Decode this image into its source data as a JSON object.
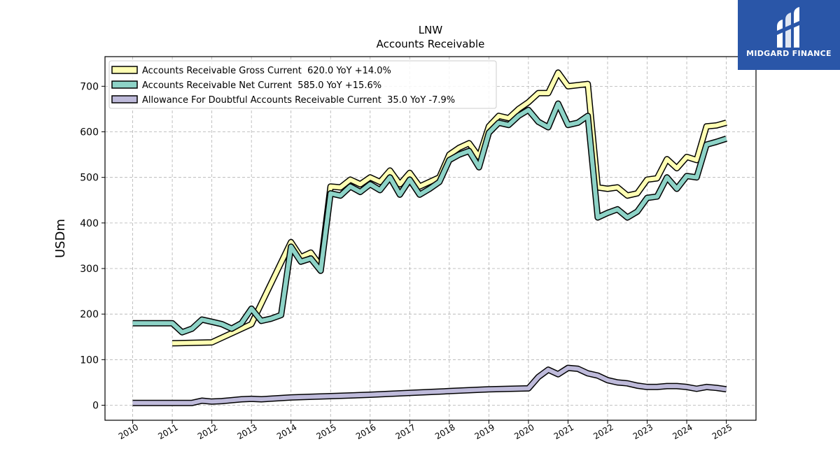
{
  "logo": {
    "text": "MIDGARD FINANCE"
  },
  "chart_data": {
    "type": "line",
    "title": "LNW",
    "subtitle": "Accounts Receivable",
    "ylabel": "USDm",
    "xlabel": "",
    "ylim": [
      -33,
      765
    ],
    "xlim": [
      2009.3,
      2025.75
    ],
    "yticks": [
      0,
      100,
      200,
      300,
      400,
      500,
      600,
      700
    ],
    "xticks": [
      2010,
      2011,
      2012,
      2013,
      2014,
      2015,
      2016,
      2017,
      2018,
      2019,
      2020,
      2021,
      2022,
      2023,
      2024,
      2025
    ],
    "grid": true,
    "legend_position": "top-left",
    "series": [
      {
        "name": "Accounts Receivable Gross Current  620.0 YoY +14.0%",
        "color": "#ffffb3",
        "points": [
          [
            2011.0,
            136
          ],
          [
            2012.0,
            138
          ],
          [
            2013.0,
            178
          ],
          [
            2014.0,
            358
          ],
          [
            2014.25,
            325
          ],
          [
            2014.5,
            335
          ],
          [
            2014.75,
            305
          ],
          [
            2015.0,
            480
          ],
          [
            2015.25,
            478
          ],
          [
            2015.5,
            495
          ],
          [
            2015.75,
            485
          ],
          [
            2016.0,
            500
          ],
          [
            2016.25,
            490
          ],
          [
            2016.5,
            515
          ],
          [
            2016.75,
            485
          ],
          [
            2017.0,
            510
          ],
          [
            2017.25,
            480
          ],
          [
            2017.5,
            490
          ],
          [
            2017.75,
            500
          ],
          [
            2018.0,
            550
          ],
          [
            2018.25,
            565
          ],
          [
            2018.5,
            575
          ],
          [
            2018.75,
            545
          ],
          [
            2019.0,
            612
          ],
          [
            2019.25,
            635
          ],
          [
            2019.5,
            630
          ],
          [
            2019.75,
            650
          ],
          [
            2020.0,
            665
          ],
          [
            2020.25,
            685
          ],
          [
            2020.5,
            685
          ],
          [
            2020.75,
            730
          ],
          [
            2021.0,
            700
          ],
          [
            2021.5,
            705
          ],
          [
            2021.75,
            478
          ],
          [
            2022.0,
            475
          ],
          [
            2022.25,
            478
          ],
          [
            2022.5,
            460
          ],
          [
            2022.75,
            465
          ],
          [
            2023.0,
            495
          ],
          [
            2023.25,
            498
          ],
          [
            2023.5,
            540
          ],
          [
            2023.75,
            520
          ],
          [
            2024.0,
            545
          ],
          [
            2024.25,
            538
          ],
          [
            2024.5,
            612
          ],
          [
            2024.75,
            614
          ],
          [
            2025.0,
            620
          ]
        ]
      },
      {
        "name": "Accounts Receivable Net Current  585.0 YoY +15.6%",
        "color": "#8dd3c7",
        "points": [
          [
            2010.0,
            180
          ],
          [
            2011.0,
            180
          ],
          [
            2011.25,
            160
          ],
          [
            2011.5,
            168
          ],
          [
            2011.75,
            188
          ],
          [
            2012.0,
            183
          ],
          [
            2012.25,
            178
          ],
          [
            2012.5,
            168
          ],
          [
            2012.75,
            180
          ],
          [
            2013.0,
            212
          ],
          [
            2013.25,
            185
          ],
          [
            2013.5,
            190
          ],
          [
            2013.75,
            198
          ],
          [
            2014.0,
            348
          ],
          [
            2014.25,
            315
          ],
          [
            2014.5,
            322
          ],
          [
            2014.75,
            295
          ],
          [
            2015.0,
            465
          ],
          [
            2015.25,
            460
          ],
          [
            2015.5,
            480
          ],
          [
            2015.75,
            468
          ],
          [
            2016.0,
            485
          ],
          [
            2016.25,
            472
          ],
          [
            2016.5,
            500
          ],
          [
            2016.75,
            462
          ],
          [
            2017.0,
            495
          ],
          [
            2017.25,
            462
          ],
          [
            2017.5,
            475
          ],
          [
            2017.75,
            490
          ],
          [
            2018.0,
            538
          ],
          [
            2018.25,
            550
          ],
          [
            2018.5,
            558
          ],
          [
            2018.75,
            522
          ],
          [
            2019.0,
            598
          ],
          [
            2019.25,
            620
          ],
          [
            2019.5,
            615
          ],
          [
            2019.75,
            635
          ],
          [
            2020.0,
            648
          ],
          [
            2020.25,
            622
          ],
          [
            2020.5,
            610
          ],
          [
            2020.75,
            662
          ],
          [
            2021.0,
            615
          ],
          [
            2021.25,
            620
          ],
          [
            2021.5,
            635
          ],
          [
            2021.75,
            412
          ],
          [
            2022.0,
            422
          ],
          [
            2022.25,
            430
          ],
          [
            2022.5,
            412
          ],
          [
            2022.75,
            425
          ],
          [
            2023.0,
            455
          ],
          [
            2023.25,
            458
          ],
          [
            2023.5,
            500
          ],
          [
            2023.75,
            475
          ],
          [
            2024.0,
            503
          ],
          [
            2024.25,
            500
          ],
          [
            2024.5,
            572
          ],
          [
            2024.75,
            578
          ],
          [
            2025.0,
            585
          ]
        ]
      },
      {
        "name": "Allowance For Doubtful Accounts Receivable Current  35.0 YoY -7.9%",
        "color": "#bebada",
        "points": [
          [
            2010.0,
            5
          ],
          [
            2011.0,
            5
          ],
          [
            2011.5,
            5
          ],
          [
            2011.75,
            10
          ],
          [
            2012.0,
            8
          ],
          [
            2012.25,
            9
          ],
          [
            2012.5,
            11
          ],
          [
            2012.75,
            13
          ],
          [
            2013.0,
            14
          ],
          [
            2013.25,
            13
          ],
          [
            2014.0,
            17
          ],
          [
            2015.0,
            20
          ],
          [
            2016.0,
            23
          ],
          [
            2017.0,
            27
          ],
          [
            2018.0,
            31
          ],
          [
            2019.0,
            35
          ],
          [
            2020.0,
            37
          ],
          [
            2020.25,
            62
          ],
          [
            2020.5,
            78
          ],
          [
            2020.75,
            68
          ],
          [
            2021.0,
            82
          ],
          [
            2021.25,
            80
          ],
          [
            2021.5,
            70
          ],
          [
            2021.75,
            65
          ],
          [
            2022.0,
            55
          ],
          [
            2022.25,
            50
          ],
          [
            2022.5,
            48
          ],
          [
            2022.75,
            43
          ],
          [
            2023.0,
            40
          ],
          [
            2023.25,
            40
          ],
          [
            2023.5,
            42
          ],
          [
            2023.75,
            42
          ],
          [
            2024.0,
            40
          ],
          [
            2024.25,
            36
          ],
          [
            2024.5,
            40
          ],
          [
            2024.75,
            38
          ],
          [
            2025.0,
            35
          ]
        ]
      }
    ]
  }
}
